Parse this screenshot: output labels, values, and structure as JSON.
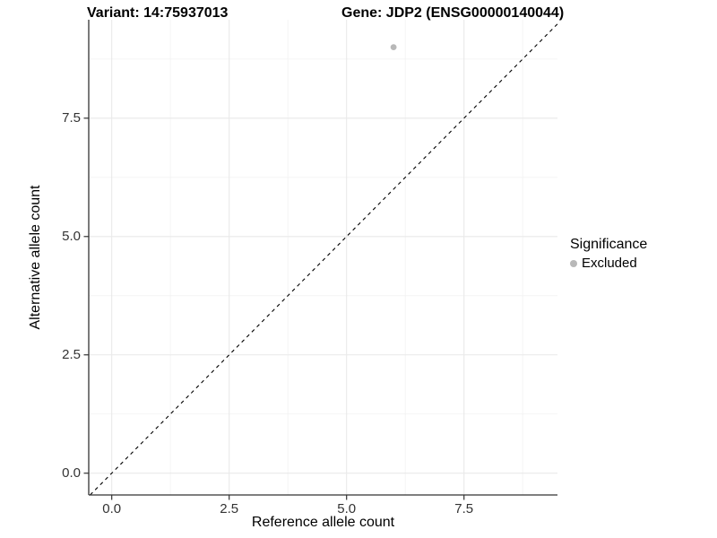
{
  "header": {
    "variant_title": "Variant: 14:75937013",
    "gene_title": "Gene: JDP2 (ENSG00000140044)"
  },
  "chart_data": {
    "type": "scatter",
    "xlabel": "Reference allele count",
    "ylabel": "Alternative allele count",
    "xlim": [
      -0.49,
      9.49
    ],
    "ylim": [
      -0.46,
      9.58
    ],
    "x_ticks": [
      0.0,
      2.5,
      5.0,
      7.5
    ],
    "y_ticks": [
      0.0,
      2.5,
      5.0,
      7.5
    ],
    "x_tick_labels": [
      "0.0",
      "2.5",
      "5.0",
      "7.5"
    ],
    "y_tick_labels": [
      "0.0",
      "2.5",
      "5.0",
      "7.5"
    ],
    "minor_ticks": [
      1.25,
      3.75,
      6.25,
      8.75
    ],
    "grid": true,
    "series": [
      {
        "name": "Excluded",
        "color": "#b8b8b8",
        "points": [
          {
            "x": 6,
            "y": 9
          }
        ]
      }
    ],
    "abline": {
      "slope": 1,
      "intercept": 0,
      "style": "dashed",
      "color": "#000000"
    },
    "legend": {
      "title": "Significance",
      "position": "right",
      "items": [
        {
          "label": "Excluded",
          "color": "#b8b8b8"
        }
      ]
    },
    "theme": {
      "axis_line_color": "#333333",
      "tick_color": "#333333",
      "tick_label_color": "#333333",
      "grid_major_color": "#e9e9e9",
      "grid_minor_color": "#f3f3f3",
      "background": "#ffffff"
    }
  }
}
